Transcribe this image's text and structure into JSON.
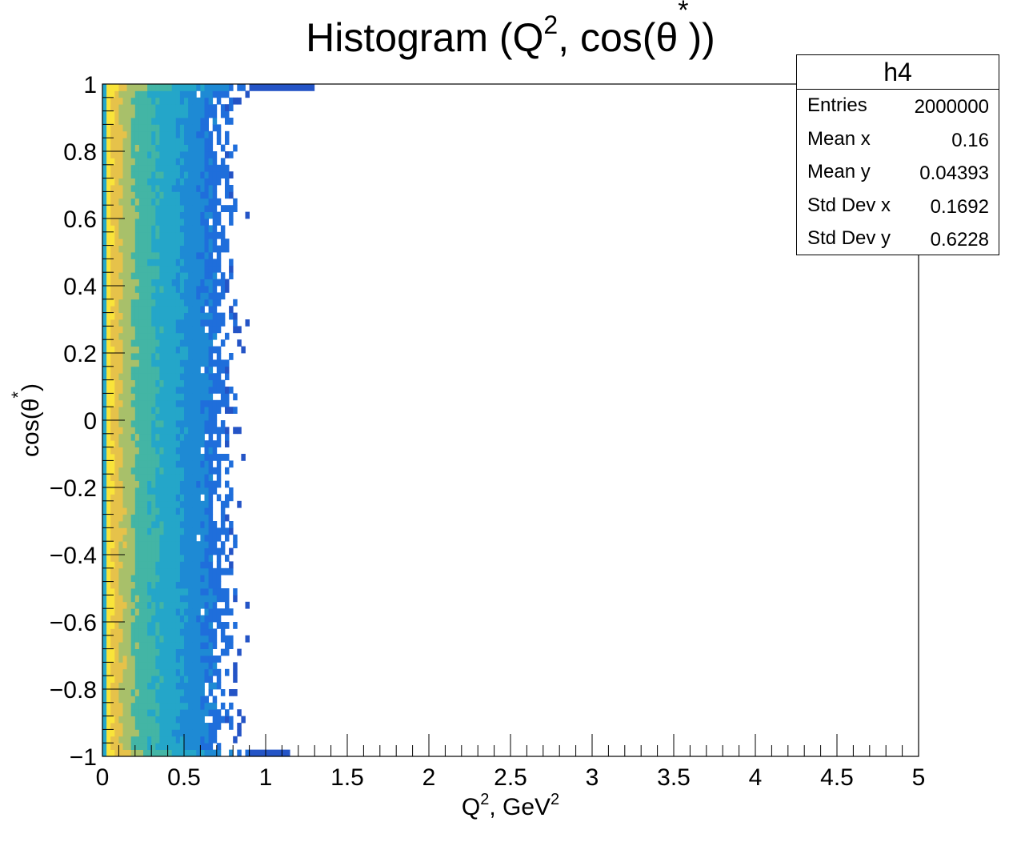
{
  "chart_data": {
    "type": "heatmap",
    "title": "Histogram (Q², cos(θ*))",
    "xlabel": "Q², GeV²",
    "ylabel": "cos(θ*)",
    "xlim": [
      0,
      5
    ],
    "ylim": [
      -1,
      1
    ],
    "x_ticks": [
      "0",
      "0.5",
      "1",
      "1.5",
      "2",
      "2.5",
      "3",
      "3.5",
      "4",
      "4.5",
      "5"
    ],
    "y_ticks": [
      "−1",
      "−0.8",
      "−0.6",
      "−0.4",
      "−0.2",
      "0",
      "0.2",
      "0.4",
      "0.6",
      "0.8",
      "1"
    ],
    "colormap": [
      "#f9e43a",
      "#e6c24a",
      "#a8c06a",
      "#43b5a5",
      "#24a6c9",
      "#1e8ad4",
      "#1f6edb",
      "#2454c6"
    ],
    "density_profile": {
      "x": [
        0.0,
        0.03,
        0.06,
        0.1,
        0.15,
        0.2,
        0.3,
        0.4,
        0.5,
        0.6,
        0.7,
        0.8,
        0.85
      ],
      "level": [
        0.0,
        1.0,
        0.92,
        0.82,
        0.72,
        0.62,
        0.52,
        0.44,
        0.34,
        0.24,
        0.16,
        0.06,
        0.0
      ]
    },
    "edge_extent": {
      "top_row_x_max": 1.3,
      "bottom_row_x_max": 1.15
    },
    "grid": false,
    "legend_position": "top-right"
  },
  "stats": {
    "name": "h4",
    "rows": [
      {
        "label": "Entries",
        "value": "2000000"
      },
      {
        "label": "Mean x",
        "value": "0.16"
      },
      {
        "label": "Mean y",
        "value": "0.04393"
      },
      {
        "label": "Std Dev x",
        "value": "0.1692"
      },
      {
        "label": "Std Dev y",
        "value": "0.6228"
      }
    ]
  }
}
